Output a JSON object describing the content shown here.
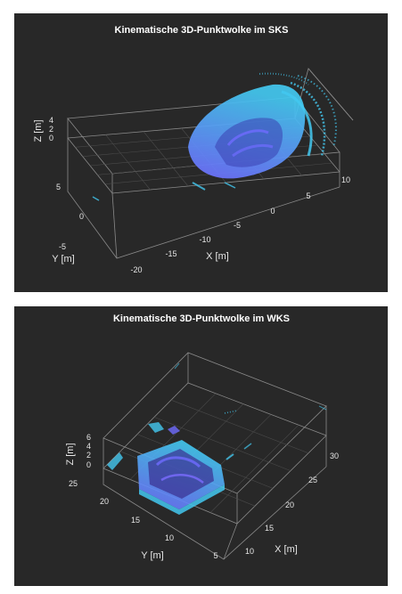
{
  "chart_data": [
    {
      "type": "scatter3d",
      "title": "Kinematische 3D-Punktwolke im SKS",
      "xlabel": "X [m]",
      "ylabel": "Y [m]",
      "zlabel": "Z [m]",
      "x_ticks": [
        "-20",
        "-15",
        "-10",
        "-5",
        "0",
        "5",
        "10"
      ],
      "y_ticks": [
        "-5",
        "0",
        "5"
      ],
      "z_ticks": [
        "0",
        "2",
        "4"
      ],
      "xlim": [
        -22,
        12
      ],
      "ylim": [
        -8,
        7
      ],
      "zlim": [
        0,
        4
      ],
      "grid": true,
      "colors": {
        "background": "#282828",
        "points_low": "#6f6cff",
        "points_high": "#43c8f0"
      }
    },
    {
      "type": "scatter3d",
      "title": "Kinematische 3D-Punktwolke im WKS",
      "xlabel": "X [m]",
      "ylabel": "Y [m]",
      "zlabel": "Z [m]",
      "x_ticks": [
        "10",
        "15",
        "20",
        "25",
        "30"
      ],
      "y_ticks": [
        "5",
        "10",
        "15",
        "20",
        "25"
      ],
      "z_ticks": [
        "0",
        "2",
        "4",
        "6"
      ],
      "xlim": [
        8,
        32
      ],
      "ylim": [
        3,
        27
      ],
      "zlim": [
        0,
        6
      ],
      "grid": true,
      "colors": {
        "background": "#282828",
        "points_low": "#6f6cff",
        "points_high": "#43c8f0"
      }
    }
  ]
}
